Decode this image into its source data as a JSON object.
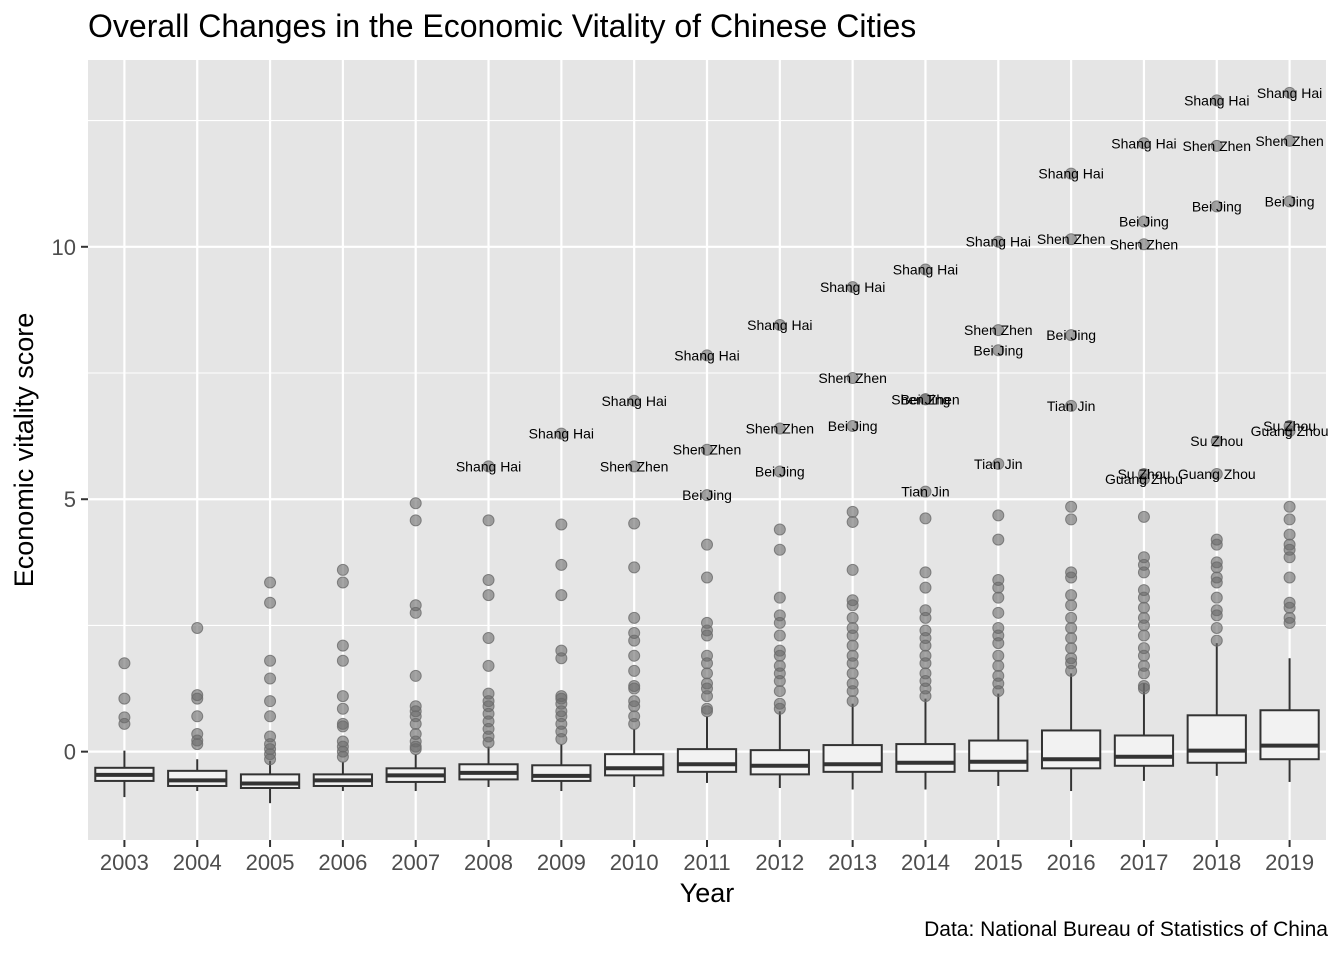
{
  "chart_data": {
    "type": "box",
    "title": "Overall Changes in the Economic Vitality of Chinese Cities",
    "xlabel": "Year",
    "ylabel": "Economic vitality score",
    "caption": "Data: National Bureau of Statistics of China",
    "ylim": [
      -1.75,
      13.7
    ],
    "yticks": [
      0,
      5,
      10
    ],
    "grid": true,
    "categories": [
      "2003",
      "2004",
      "2005",
      "2006",
      "2007",
      "2008",
      "2009",
      "2010",
      "2011",
      "2012",
      "2013",
      "2014",
      "2015",
      "2016",
      "2017",
      "2018",
      "2019"
    ],
    "boxes": [
      {
        "q1": -0.58,
        "median": -0.46,
        "q3": -0.32,
        "lower": -0.9,
        "upper": 0.02
      },
      {
        "q1": -0.68,
        "median": -0.57,
        "q3": -0.38,
        "lower": -0.78,
        "upper": -0.15
      },
      {
        "q1": -0.72,
        "median": -0.63,
        "q3": -0.45,
        "lower": -1.02,
        "upper": -0.18
      },
      {
        "q1": -0.68,
        "median": -0.57,
        "q3": -0.45,
        "lower": -0.78,
        "upper": -0.2
      },
      {
        "q1": -0.6,
        "median": -0.47,
        "q3": -0.33,
        "lower": -0.78,
        "upper": -0.05
      },
      {
        "q1": -0.55,
        "median": -0.42,
        "q3": -0.25,
        "lower": -0.7,
        "upper": 0.1
      },
      {
        "q1": -0.58,
        "median": -0.48,
        "q3": -0.27,
        "lower": -0.78,
        "upper": 0.15
      },
      {
        "q1": -0.47,
        "median": -0.33,
        "q3": -0.05,
        "lower": -0.7,
        "upper": 0.45
      },
      {
        "q1": -0.4,
        "median": -0.25,
        "q3": 0.05,
        "lower": -0.62,
        "upper": 0.7
      },
      {
        "q1": -0.45,
        "median": -0.28,
        "q3": 0.03,
        "lower": -0.72,
        "upper": 0.8
      },
      {
        "q1": -0.4,
        "median": -0.25,
        "q3": 0.13,
        "lower": -0.75,
        "upper": 0.95
      },
      {
        "q1": -0.4,
        "median": -0.22,
        "q3": 0.15,
        "lower": -0.75,
        "upper": 1.05
      },
      {
        "q1": -0.38,
        "median": -0.2,
        "q3": 0.22,
        "lower": -0.68,
        "upper": 1.15
      },
      {
        "q1": -0.33,
        "median": -0.15,
        "q3": 0.42,
        "lower": -0.78,
        "upper": 1.55
      },
      {
        "q1": -0.28,
        "median": -0.1,
        "q3": 0.32,
        "lower": -0.58,
        "upper": 1.35
      },
      {
        "q1": -0.22,
        "median": 0.02,
        "q3": 0.72,
        "lower": -0.48,
        "upper": 2.15
      },
      {
        "q1": -0.15,
        "median": 0.12,
        "q3": 0.82,
        "lower": -0.6,
        "upper": 1.85
      }
    ],
    "outliers": [
      [
        0.55,
        0.68,
        1.05,
        1.75
      ],
      [
        0.15,
        0.22,
        0.35,
        0.7,
        1.05,
        1.12,
        2.45
      ],
      [
        -0.15,
        -0.05,
        0.05,
        0.15,
        0.3,
        0.7,
        1.0,
        1.45,
        1.8,
        2.95,
        3.35
      ],
      [
        -0.1,
        0.0,
        0.1,
        0.2,
        0.5,
        0.55,
        0.85,
        1.1,
        1.8,
        2.1,
        3.35,
        3.6
      ],
      [
        0.05,
        0.1,
        0.2,
        0.35,
        0.55,
        0.7,
        0.8,
        0.9,
        1.5,
        2.75,
        2.9,
        4.58,
        4.92
      ],
      [
        0.18,
        0.3,
        0.45,
        0.6,
        0.75,
        0.9,
        1.0,
        1.15,
        1.7,
        2.25,
        3.1,
        3.4,
        4.58
      ],
      [
        0.25,
        0.4,
        0.55,
        0.7,
        0.8,
        0.95,
        1.05,
        1.1,
        1.85,
        2.0,
        3.1,
        3.7,
        4.5
      ],
      [
        0.55,
        0.7,
        0.9,
        1.0,
        1.25,
        1.3,
        1.6,
        1.9,
        2.2,
        2.35,
        2.65,
        3.65,
        4.52
      ],
      [
        0.8,
        0.85,
        1.1,
        1.25,
        1.35,
        1.55,
        1.75,
        1.9,
        2.3,
        2.4,
        2.55,
        3.45,
        4.1
      ],
      [
        0.85,
        0.95,
        1.2,
        1.4,
        1.55,
        1.7,
        1.9,
        2.0,
        2.3,
        2.55,
        2.7,
        3.05,
        4.0,
        4.4
      ],
      [
        1.0,
        1.2,
        1.35,
        1.55,
        1.75,
        1.9,
        2.1,
        2.3,
        2.45,
        2.65,
        2.9,
        3.0,
        3.6,
        4.55,
        4.75
      ],
      [
        1.1,
        1.25,
        1.4,
        1.55,
        1.75,
        1.9,
        2.1,
        2.25,
        2.4,
        2.65,
        2.8,
        3.25,
        3.55,
        4.62
      ],
      [
        1.2,
        1.35,
        1.5,
        1.7,
        1.9,
        2.15,
        2.3,
        2.45,
        2.75,
        3.05,
        3.25,
        3.4,
        4.2,
        4.68
      ],
      [
        1.6,
        1.75,
        1.85,
        2.05,
        2.25,
        2.45,
        2.65,
        2.9,
        3.1,
        3.45,
        3.55,
        4.6,
        4.85
      ],
      [
        1.25,
        1.3,
        1.55,
        1.7,
        1.9,
        2.05,
        2.3,
        2.5,
        2.65,
        2.85,
        3.05,
        3.2,
        3.55,
        3.7,
        3.85,
        4.65
      ],
      [
        2.2,
        2.45,
        2.7,
        2.8,
        3.05,
        3.35,
        3.45,
        3.65,
        3.75,
        4.1,
        4.2
      ],
      [
        2.55,
        2.65,
        2.85,
        2.95,
        3.45,
        3.85,
        4.0,
        4.1,
        4.3,
        4.6,
        4.85
      ]
    ],
    "labeled_points": [
      {
        "year": "2008",
        "y": 5.65,
        "label": "Shang Hai"
      },
      {
        "year": "2009",
        "y": 6.3,
        "label": "Shang Hai"
      },
      {
        "year": "2010",
        "y": 6.95,
        "label": "Shang Hai"
      },
      {
        "year": "2010",
        "y": 5.65,
        "label": "Shen Zhen"
      },
      {
        "year": "2011",
        "y": 7.85,
        "label": "Shang Hai"
      },
      {
        "year": "2011",
        "y": 5.98,
        "label": "Shen Zhen"
      },
      {
        "year": "2011",
        "y": 5.08,
        "label": "Bei Jing"
      },
      {
        "year": "2012",
        "y": 8.45,
        "label": "Shang Hai"
      },
      {
        "year": "2012",
        "y": 6.4,
        "label": "Shen Zhen"
      },
      {
        "year": "2012",
        "y": 5.55,
        "label": "Bei Jing"
      },
      {
        "year": "2013",
        "y": 9.2,
        "label": "Shang Hai"
      },
      {
        "year": "2013",
        "y": 7.4,
        "label": "Shen Zhen"
      },
      {
        "year": "2013",
        "y": 6.45,
        "label": "Bei Jing"
      },
      {
        "year": "2014",
        "y": 9.55,
        "label": "Shang Hai"
      },
      {
        "year": "2014",
        "y": 6.98,
        "label": "Shen Zhen"
      },
      {
        "year": "2014",
        "y": 6.98,
        "label": "Bei Jing"
      },
      {
        "year": "2014",
        "y": 5.15,
        "label": "Tian Jin"
      },
      {
        "year": "2015",
        "y": 10.1,
        "label": "Shang Hai"
      },
      {
        "year": "2015",
        "y": 8.35,
        "label": "Shen Zhen"
      },
      {
        "year": "2015",
        "y": 7.95,
        "label": "Bei Jing"
      },
      {
        "year": "2015",
        "y": 5.7,
        "label": "Tian Jin"
      },
      {
        "year": "2016",
        "y": 11.45,
        "label": "Shang Hai"
      },
      {
        "year": "2016",
        "y": 10.15,
        "label": "Shen Zhen"
      },
      {
        "year": "2016",
        "y": 8.25,
        "label": "Bei Jing"
      },
      {
        "year": "2016",
        "y": 6.85,
        "label": "Tian Jin"
      },
      {
        "year": "2017",
        "y": 12.05,
        "label": "Shang Hai"
      },
      {
        "year": "2017",
        "y": 10.5,
        "label": "Bei Jing"
      },
      {
        "year": "2017",
        "y": 10.05,
        "label": "Shen Zhen"
      },
      {
        "year": "2017",
        "y": 5.5,
        "label": "Su Zhou"
      },
      {
        "year": "2017",
        "y": 5.4,
        "label": "Guang Zhou"
      },
      {
        "year": "2018",
        "y": 12.9,
        "label": "Shang Hai"
      },
      {
        "year": "2018",
        "y": 12.0,
        "label": "Shen Zhen"
      },
      {
        "year": "2018",
        "y": 10.8,
        "label": "Bei Jing"
      },
      {
        "year": "2018",
        "y": 6.15,
        "label": "Su Zhou"
      },
      {
        "year": "2018",
        "y": 5.5,
        "label": "Guang Zhou"
      },
      {
        "year": "2019",
        "y": 13.05,
        "label": "Shang Hai"
      },
      {
        "year": "2019",
        "y": 12.1,
        "label": "Shen Zhen"
      },
      {
        "year": "2019",
        "y": 10.9,
        "label": "Bei Jing"
      },
      {
        "year": "2019",
        "y": 6.45,
        "label": "Su Zhou"
      },
      {
        "year": "2019",
        "y": 6.35,
        "label": "Guang Zhou"
      }
    ],
    "colors": {
      "panel": "#e5e5e5",
      "grid": "#ffffff",
      "box_fill": "#f2f2f2",
      "box_line": "#333333",
      "outlier": "#6b6b6b"
    }
  }
}
